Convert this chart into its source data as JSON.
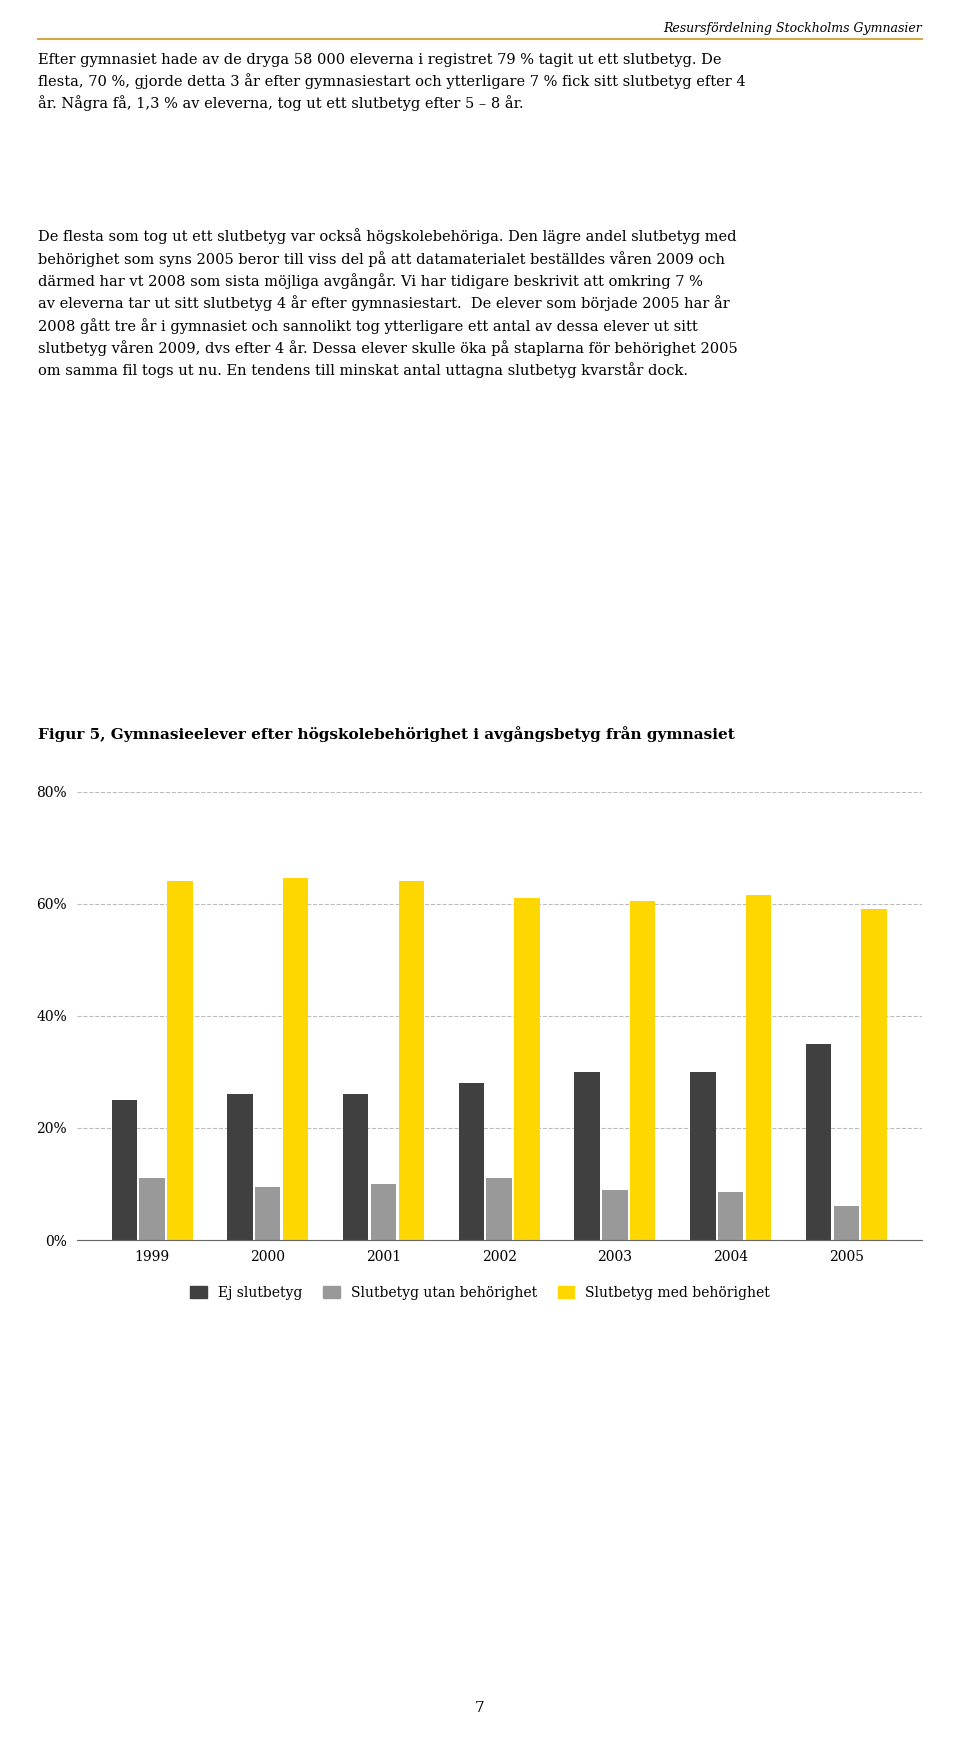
{
  "years": [
    "1999",
    "2000",
    "2001",
    "2002",
    "2003",
    "2004",
    "2005"
  ],
  "ej_slutbetyg": [
    0.25,
    0.26,
    0.26,
    0.28,
    0.3,
    0.3,
    0.35
  ],
  "utan_behorighet": [
    0.11,
    0.095,
    0.1,
    0.11,
    0.09,
    0.085,
    0.06
  ],
  "med_behorighet": [
    0.64,
    0.645,
    0.64,
    0.61,
    0.605,
    0.615,
    0.59
  ],
  "color_ej": "#404040",
  "color_utan": "#999999",
  "color_med": "#FFD700",
  "color_header_line": "#D4A843",
  "ylim": [
    0,
    0.8
  ],
  "yticks": [
    0,
    0.2,
    0.4,
    0.6,
    0.8
  ],
  "ytick_labels": [
    "0%",
    "20%",
    "40%",
    "60%",
    "80%"
  ],
  "legend_labels": [
    "Ej slutbetyg",
    "Slutbetyg utan behörighet",
    "Slutbetyg med behörighet"
  ],
  "figure_title": "Figur 5, Gymnasieelever efter högskolebehörighet i avgångsbetyg från gymnasiet",
  "header_text": "Resursfördelning Stockholms Gymnasier",
  "page_number": "7",
  "background_color": "#ffffff",
  "body_paragraphs": [
    "Efter gymnasiet hade av de dryga 58 000 eleverna i registret 79 % tagit ut ett slutbetyg. De flesta, 70 %, gjorde detta 3 år efter gymnasiestart och ytterligare 7 % fick sitt slutbetyg efter 4 år. Några få, 1,3 % av eleverna, tog ut ett slutbetyg efter 5 – 8 år.",
    "De flesta som tog ut ett slutbetyg var också högskolebehöriga. Den lägre andel slutbetyg med behörighet som syns 2005 beror till viss del på att datamaterialet beställdes våren 2009 och därmed har vt 2008 som sista möjliga avgångår. Vi har tidigare beskrivit att omkring 7 % av eleverna tar ut sitt slutbetyg 4 år efter gymnasiestart.  De elever som började 2005 har år 2008 gått tre år i gymnasiet och sannolikt tog ytterligare ett antal av dessa elever ut sitt slutbetyg våren 2009, dvs efter 4 år. Dessa elever skulle öka på staplarna för behörighet 2005 om samma fil togs ut nu. En tendens till minskat antal uttagna slutbetyg kvarstår dock."
  ]
}
